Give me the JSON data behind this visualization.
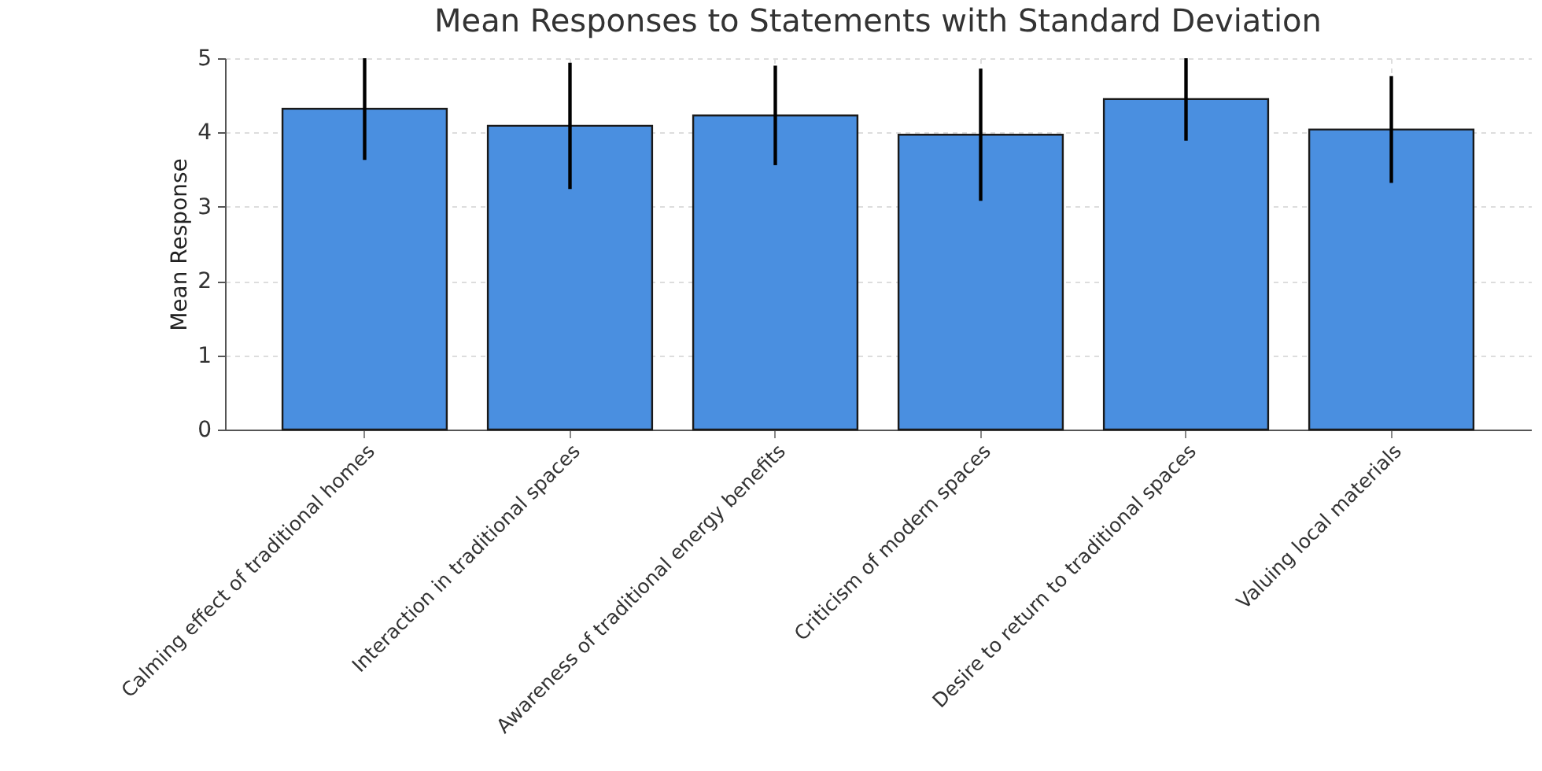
{
  "chart_data": {
    "type": "bar",
    "title": "Mean Responses to Statements with Standard Deviation",
    "ylabel": "Mean Response",
    "categories": [
      "Calming effect of traditional homes",
      "Interaction in traditional spaces",
      "Awareness of traditional energy benefits",
      "Criticism of modern spaces",
      "Desire to return to traditional spaces",
      "Valuing local materials"
    ],
    "values": [
      4.32,
      4.09,
      4.23,
      3.97,
      4.45,
      4.04
    ],
    "errors": [
      [
        3.63,
        5
      ],
      0.85,
      0.67,
      0.89,
      [
        3.89,
        5
      ],
      0.72
    ],
    "color": "#4a8fe0",
    "ylim": [
      0,
      5
    ],
    "yticks": [
      0,
      1,
      2,
      3,
      4,
      5
    ],
    "grid": true
  }
}
